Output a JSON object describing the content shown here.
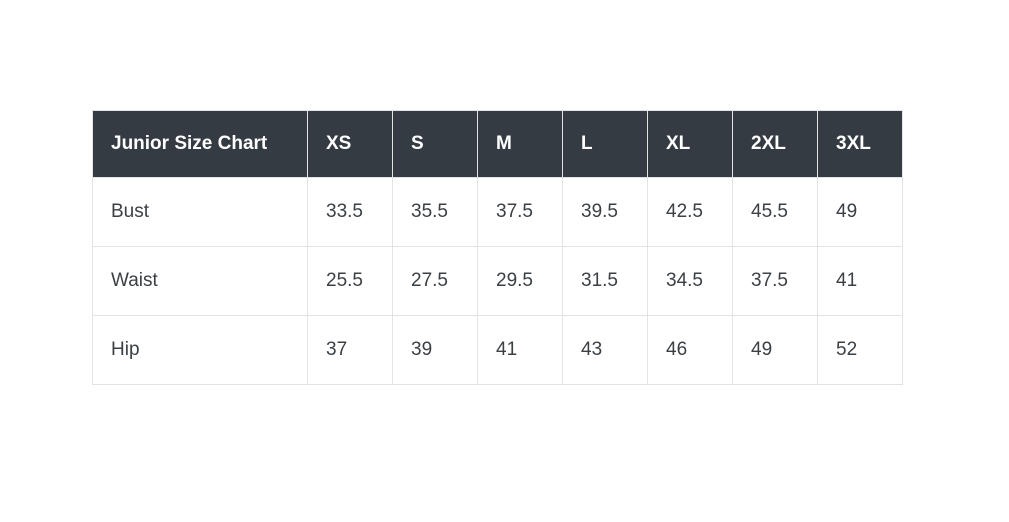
{
  "chart_data": {
    "type": "table",
    "title": "Junior Size Chart",
    "columns": [
      "XS",
      "S",
      "M",
      "L",
      "XL",
      "2XL",
      "3XL"
    ],
    "rows": [
      {
        "label": "Bust",
        "values": [
          "33.5",
          "35.5",
          "37.5",
          "39.5",
          "42.5",
          "45.5",
          "49"
        ]
      },
      {
        "label": "Waist",
        "values": [
          "25.5",
          "27.5",
          "29.5",
          "31.5",
          "34.5",
          "37.5",
          "41"
        ]
      },
      {
        "label": "Hip",
        "values": [
          "37",
          "39",
          "41",
          "43",
          "46",
          "49",
          "52"
        ]
      }
    ],
    "layout": {
      "header_position": "top",
      "grid": true
    }
  },
  "colors": {
    "header_bg": "#343b43",
    "header_text": "#ffffff",
    "body_text": "#3b4045",
    "border": "#e1e3e5",
    "page_bg": "#ffffff"
  }
}
